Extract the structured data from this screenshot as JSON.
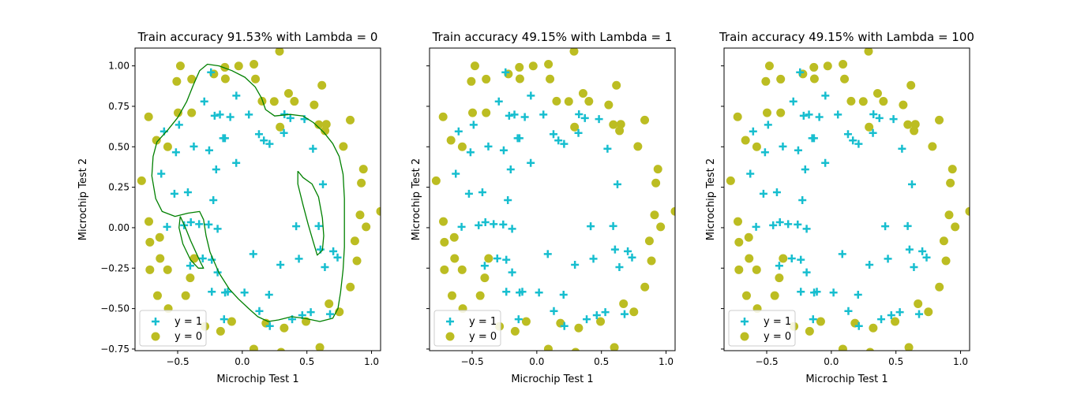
{
  "chart_data": {
    "type": "scatter",
    "xlim": [
      -0.83,
      1.07
    ],
    "ylim": [
      -0.76,
      1.11
    ],
    "xticks": [
      -0.5,
      0.0,
      0.5,
      1.0
    ],
    "xtick_labels": [
      "−0.5",
      "0.0",
      "0.5",
      "1.0"
    ],
    "yticks": [
      -0.75,
      -0.5,
      -0.25,
      0.0,
      0.25,
      0.5,
      0.75,
      1.0
    ],
    "ytick_labels": [
      "−0.75",
      "−0.50",
      "−0.25",
      "0.00",
      "0.25",
      "0.50",
      "0.75",
      "1.00"
    ],
    "xlabel": "Microchip Test 1",
    "ylabel": "Microchip Test 2",
    "legend": {
      "position": "lower-left",
      "entries": [
        "y = 1",
        "y = 0"
      ]
    },
    "colors": {
      "positive": "#17becf",
      "negative": "#bcbd22",
      "boundary": "#008000"
    },
    "panels": [
      {
        "title": "Train accuracy 91.53% with Lambda = 0",
        "show_boundary": true,
        "show_yticklabels": true
      },
      {
        "title": "Train accuracy 49.15% with Lambda = 1",
        "show_boundary": false,
        "show_yticklabels": false
      },
      {
        "title": "Train accuracy 49.15% with Lambda = 100",
        "show_boundary": false,
        "show_yticklabels": false
      }
    ],
    "series": [
      {
        "name": "y = 1",
        "marker": "plus",
        "points": [
          [
            0.051,
            0.699
          ],
          [
            -0.093,
            0.684
          ],
          [
            -0.214,
            0.692
          ],
          [
            -0.375,
            0.502
          ],
          [
            -0.513,
            0.466
          ],
          [
            -0.525,
            0.21
          ],
          [
            -0.398,
            0.034
          ],
          [
            -0.306,
            -0.19
          ],
          [
            0.017,
            -0.401
          ],
          [
            0.132,
            -0.515
          ],
          [
            0.386,
            -0.566
          ],
          [
            0.53,
            -0.522
          ],
          [
            0.639,
            -0.244
          ],
          [
            0.737,
            -0.184
          ],
          [
            0.547,
            0.488
          ],
          [
            0.322,
            0.585
          ],
          [
            0.167,
            0.539
          ],
          [
            -0.046,
            0.816
          ],
          [
            -0.173,
            0.699
          ],
          [
            -0.294,
            0.78
          ],
          [
            -0.605,
            0.595
          ],
          [
            -0.627,
            0.333
          ],
          [
            -0.582,
            0.005
          ],
          [
            -0.403,
            -0.235
          ],
          [
            -0.236,
            -0.396
          ],
          [
            -0.141,
            -0.566
          ],
          [
            0.213,
            -0.608
          ],
          [
            0.464,
            -0.541
          ],
          [
            0.679,
            -0.534
          ],
          [
            0.704,
            -0.146
          ],
          [
            0.624,
            0.268
          ],
          [
            0.481,
            0.671
          ],
          [
            0.211,
            0.518
          ],
          [
            0.326,
            0.701
          ],
          [
            -0.134,
            0.553
          ],
          [
            -0.256,
            0.478
          ],
          [
            -0.421,
            0.219
          ],
          [
            -0.202,
            0.36
          ],
          [
            -0.047,
            0.4
          ],
          [
            -0.148,
            0.553
          ],
          [
            -0.334,
            0.022
          ],
          [
            -0.26,
            0.02
          ],
          [
            -0.191,
            -0.007
          ],
          [
            -0.191,
            -0.276
          ],
          [
            -0.133,
            -0.401
          ],
          [
            0.207,
            -0.414
          ],
          [
            0.438,
            -0.192
          ],
          [
            0.605,
            -0.135
          ],
          [
            0.591,
            0.01
          ],
          [
            0.417,
            0.009
          ],
          [
            0.295,
            -0.229
          ],
          [
            0.085,
            -0.163
          ],
          [
            -0.236,
            -0.198
          ],
          [
            -0.112,
            -0.396
          ],
          [
            0.129,
            0.578
          ],
          [
            0.372,
            0.677
          ],
          [
            -0.242,
            0.96
          ],
          [
            -0.489,
            0.636
          ],
          [
            -0.45,
            0.015
          ],
          [
            -0.224,
            0.17
          ]
        ]
      },
      {
        "name": "y = 0",
        "marker": "circle",
        "points": [
          [
            -0.725,
            0.685
          ],
          [
            -0.507,
            0.904
          ],
          [
            -0.392,
            0.918
          ],
          [
            -0.135,
            0.991
          ],
          [
            -0.131,
            0.92
          ],
          [
            -0.028,
            0.999
          ],
          [
            0.102,
            0.919
          ],
          [
            0.153,
            0.782
          ],
          [
            0.247,
            0.78
          ],
          [
            0.403,
            0.781
          ],
          [
            0.556,
            0.759
          ],
          [
            0.65,
            0.639
          ],
          [
            0.782,
            0.502
          ],
          [
            0.835,
            0.665
          ],
          [
            0.937,
            0.362
          ],
          [
            0.921,
            0.276
          ],
          [
            0.911,
            0.079
          ],
          [
            0.958,
            0.005
          ],
          [
            0.871,
            -0.082
          ],
          [
            0.887,
            -0.205
          ],
          [
            0.836,
            -0.367
          ],
          [
            0.671,
            -0.47
          ],
          [
            0.751,
            -0.52
          ],
          [
            0.493,
            -0.58
          ],
          [
            0.324,
            -0.62
          ],
          [
            0.183,
            -0.59
          ],
          [
            -0.168,
            -0.64
          ],
          [
            -0.289,
            -0.61
          ],
          [
            -0.438,
            -0.42
          ],
          [
            -0.573,
            -0.5
          ],
          [
            -0.656,
            -0.42
          ],
          [
            -0.715,
            -0.26
          ],
          [
            -0.578,
            -0.26
          ],
          [
            -0.636,
            -0.19
          ],
          [
            -0.715,
            -0.09
          ],
          [
            -0.639,
            -0.06
          ],
          [
            -0.723,
            0.038
          ],
          [
            -0.779,
            0.29
          ],
          [
            -0.577,
            0.5
          ],
          [
            -0.664,
            0.54
          ],
          [
            -0.497,
            0.71
          ],
          [
            -0.392,
            0.71
          ],
          [
            -0.479,
            1.0
          ],
          [
            -0.22,
            0.95
          ],
          [
            0.09,
            1.01
          ],
          [
            0.288,
            1.09
          ],
          [
            0.616,
            0.88
          ],
          [
            0.64,
            0.599
          ],
          [
            0.592,
            0.637
          ],
          [
            0.292,
            0.622
          ],
          [
            0.358,
            0.83
          ],
          [
            0.089,
            -0.75
          ],
          [
            -0.082,
            -0.58
          ],
          [
            -0.373,
            -0.19
          ],
          [
            -0.403,
            -0.31
          ],
          [
            0.3,
            -0.77
          ],
          [
            0.6,
            -0.74
          ],
          [
            1.07,
            0.101
          ]
        ]
      }
    ]
  }
}
